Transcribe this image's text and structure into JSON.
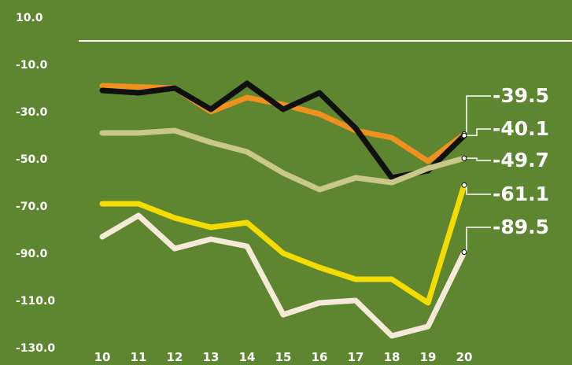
{
  "background_color": "#5e8530",
  "chart_data": {
    "type": "line",
    "title": "",
    "xlabel": "",
    "ylabel": "",
    "x": [
      10,
      11,
      12,
      13,
      14,
      15,
      16,
      17,
      18,
      19,
      20
    ],
    "x_tick_labels": [
      "10",
      "11",
      "12",
      "13",
      "14",
      "15",
      "16",
      "17",
      "18",
      "19",
      "20"
    ],
    "y_ticks": [
      10,
      -10,
      -30,
      -50,
      -70,
      -90,
      -110,
      -130
    ],
    "y_tick_labels": [
      "10.0",
      "-10.0",
      "-30.0",
      "-50.0",
      "-70.0",
      "-90.0",
      "-110.0",
      "-130.0"
    ],
    "ylim": [
      -130,
      10
    ],
    "reference_line": 0,
    "grid": false,
    "legend": "none",
    "series": [
      {
        "color": "#f0901e",
        "values": [
          -19,
          -19.5,
          -20,
          -30,
          -24,
          -27,
          -31,
          -38,
          -41,
          -51,
          -39.5
        ],
        "end_label": "-39.5"
      },
      {
        "color": "#101010",
        "values": [
          -21,
          -22,
          -20,
          -29,
          -18,
          -29,
          -22,
          -37,
          -58,
          -55,
          -40.1
        ],
        "end_label": "-40.1"
      },
      {
        "color": "#c9c88a",
        "values": [
          -39,
          -39,
          -38,
          -43,
          -47,
          -56,
          -63,
          -58,
          -60,
          -54,
          -49.7
        ],
        "end_label": "-49.7"
      },
      {
        "color": "#f5dc00",
        "values": [
          -69,
          -69,
          -75,
          -79,
          -77,
          -90,
          -96,
          -101,
          -101,
          -111,
          -61.1
        ],
        "end_label": "-61.1"
      },
      {
        "color": "#f5ead8",
        "values": [
          -83,
          -74,
          -88,
          -84,
          -87,
          -116,
          -111,
          -110,
          -125,
          -121,
          -89.5
        ],
        "end_label": "-89.5"
      }
    ]
  }
}
